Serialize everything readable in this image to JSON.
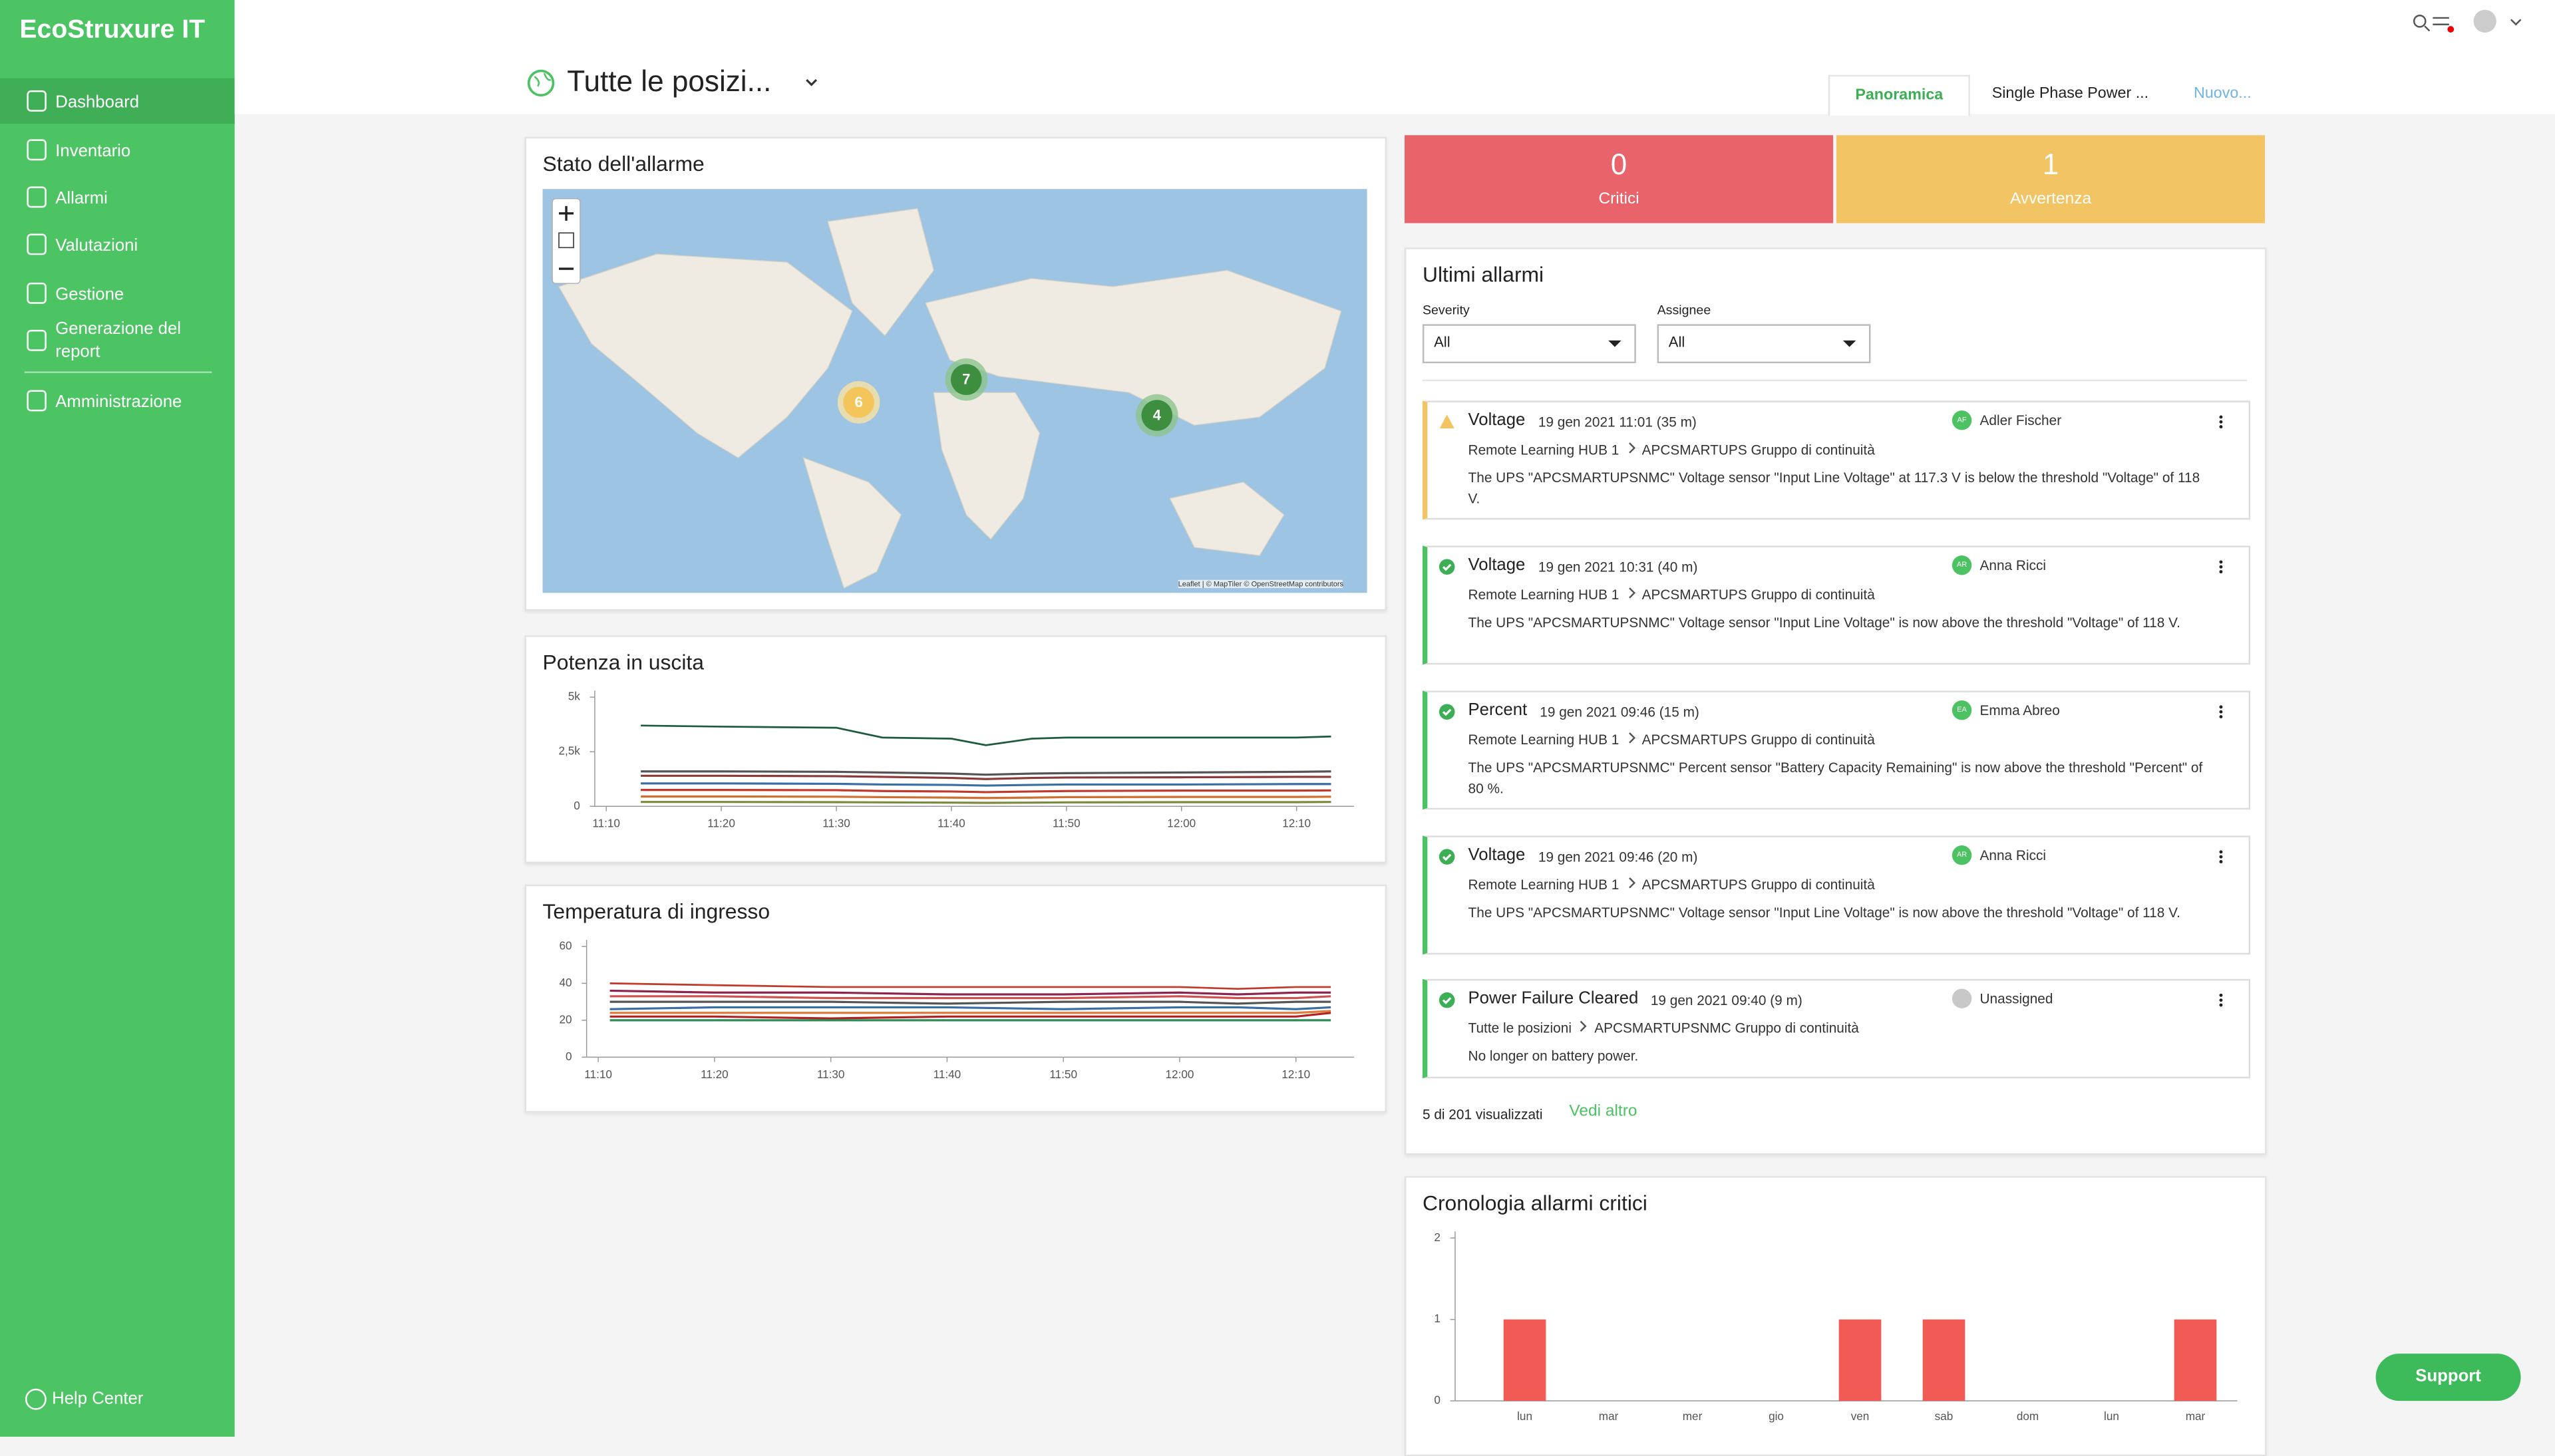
{
  "brand": "EcoStruxure IT",
  "nav": [
    "Dashboard",
    "Inventario",
    "Allarmi",
    "Valutazioni",
    "Gestione",
    "Generazione del report",
    "Amministrazione"
  ],
  "help": "Help Center",
  "location": "Tutte le posizi...",
  "tabs": [
    "Panoramica",
    "Single Phase Power ...",
    "Nuovo..."
  ],
  "map": {
    "title": "Stato dell'allarme",
    "clusters": [
      6,
      7,
      4
    ],
    "attribution": "Leaflet | © MapTiler © OpenStreetMap contributors"
  },
  "counters": [
    {
      "value": 0,
      "label": "Critici"
    },
    {
      "value": 1,
      "label": "Avvertenza"
    }
  ],
  "alarms": {
    "title": "Ultimi allarmi",
    "filters": [
      {
        "label": "Severity",
        "value": "All"
      },
      {
        "label": "Assignee",
        "value": "All"
      }
    ],
    "items": [
      {
        "severity": "warning",
        "name": "Voltage",
        "time": "19 gen 2021 11:01 (35 m)",
        "initials": "AF",
        "assignee": "Adler Fischer",
        "path": [
          "Remote Learning HUB 1",
          "APCSMARTUPS Gruppo di continuità"
        ],
        "message": "The UPS \"APCSMARTUPSNMC\" Voltage sensor \"Input Line Voltage\" at 117.3 V is below the threshold \"Voltage\" of 118 V."
      },
      {
        "severity": "ok",
        "name": "Voltage",
        "time": "19 gen 2021 10:31 (40 m)",
        "initials": "AR",
        "assignee": "Anna Ricci",
        "path": [
          "Remote Learning HUB 1",
          "APCSMARTUPS Gruppo di continuità"
        ],
        "message": "The UPS \"APCSMARTUPSNMC\" Voltage sensor \"Input Line Voltage\" is now above the threshold \"Voltage\" of 118 V."
      },
      {
        "severity": "ok",
        "name": "Percent",
        "time": "19 gen 2021 09:46 (15 m)",
        "initials": "EA",
        "assignee": "Emma Abreo",
        "path": [
          "Remote Learning HUB 1",
          "APCSMARTUPS Gruppo di continuità"
        ],
        "message": "The UPS \"APCSMARTUPSNMC\" Percent sensor \"Battery Capacity Remaining\" is now above the threshold \"Percent\" of 80 %."
      },
      {
        "severity": "ok",
        "name": "Voltage",
        "time": "19 gen 2021 09:46 (20 m)",
        "initials": "AR",
        "assignee": "Anna Ricci",
        "path": [
          "Remote Learning HUB 1",
          "APCSMARTUPS Gruppo di continuità"
        ],
        "message": "The UPS \"APCSMARTUPSNMC\" Voltage sensor \"Input Line Voltage\" is now above the threshold \"Voltage\" of 118 V."
      },
      {
        "severity": "ok",
        "name": "Power Failure Cleared",
        "time": "19 gen 2021 09:40 (9 m)",
        "assignee": "Unassigned",
        "path": [
          "Tutte le posizioni",
          "APCSMARTUPSNMC Gruppo di continuità"
        ],
        "message": "No longer on battery power."
      }
    ],
    "footer": "5 di 201 visualizzati",
    "more": "Vedi altro"
  },
  "support": "Support",
  "chart_data": [
    {
      "type": "line",
      "title": "Potenza in uscita",
      "x": [
        "11:13",
        "11:20",
        "11:30",
        "11:34",
        "11:40",
        "11:43",
        "11:47",
        "11:50",
        "12:00",
        "12:10",
        "12:13"
      ],
      "xlim": [
        "11:09",
        "12:15"
      ],
      "xticks": [
        "11:10",
        "11:20",
        "11:30",
        "11:40",
        "11:50",
        "12:00",
        "12:10"
      ],
      "ylim": [
        0,
        5000
      ],
      "yticks": [
        0,
        {
          "value": 2500,
          "label": "2,5k"
        },
        {
          "value": 5000,
          "label": "5k"
        }
      ],
      "series": [
        {
          "color": "#1d5a3c",
          "values": [
            3700,
            3650,
            3600,
            3150,
            3100,
            2800,
            3100,
            3150,
            3150,
            3150,
            3200
          ]
        },
        {
          "color": "#555555",
          "values": [
            1600,
            1600,
            1580,
            1550,
            1500,
            1450,
            1500,
            1520,
            1550,
            1580,
            1600
          ]
        },
        {
          "color": "#8b3a3a",
          "values": [
            1400,
            1400,
            1380,
            1350,
            1300,
            1250,
            1300,
            1320,
            1330,
            1350,
            1350
          ]
        },
        {
          "color": "#3a6ea5",
          "values": [
            1050,
            1050,
            1030,
            1000,
            980,
            950,
            980,
            1000,
            1000,
            1020,
            1020
          ]
        },
        {
          "color": "#c0392b",
          "values": [
            750,
            750,
            740,
            700,
            680,
            650,
            680,
            700,
            720,
            720,
            730
          ]
        },
        {
          "color": "#d07030",
          "values": [
            450,
            450,
            440,
            420,
            400,
            380,
            400,
            420,
            430,
            430,
            440
          ]
        },
        {
          "color": "#7a8b3b",
          "values": [
            200,
            200,
            190,
            180,
            170,
            160,
            170,
            180,
            190,
            190,
            200
          ]
        }
      ]
    },
    {
      "type": "line",
      "title": "Temperatura di ingresso",
      "x": [
        "11:11",
        "11:20",
        "11:30",
        "11:40",
        "11:50",
        "12:00",
        "12:05",
        "12:10",
        "12:13"
      ],
      "xlim": [
        "11:09",
        "12:15"
      ],
      "xticks": [
        "11:10",
        "11:20",
        "11:30",
        "11:40",
        "11:50",
        "12:00",
        "12:10"
      ],
      "ylim": [
        0,
        60
      ],
      "yticks": [
        0,
        20,
        40,
        60
      ],
      "series": [
        {
          "color": "#c0392b",
          "values": [
            40,
            39,
            38,
            38,
            38,
            38,
            37,
            38,
            38
          ]
        },
        {
          "color": "#8e2450",
          "values": [
            36,
            35,
            35,
            34,
            34,
            35,
            34,
            35,
            35
          ]
        },
        {
          "color": "#d05050",
          "values": [
            33,
            33,
            32,
            32,
            32,
            33,
            32,
            32,
            33
          ]
        },
        {
          "color": "#555555",
          "values": [
            30,
            30,
            30,
            29,
            30,
            30,
            29,
            30,
            30
          ]
        },
        {
          "color": "#3a6ea5",
          "values": [
            26,
            27,
            27,
            27,
            26,
            27,
            27,
            26,
            27
          ]
        },
        {
          "color": "#e07b39",
          "values": [
            24,
            24,
            24,
            24,
            24,
            24,
            24,
            24,
            25
          ]
        },
        {
          "color": "#b22222",
          "values": [
            22,
            22,
            21,
            22,
            22,
            22,
            22,
            22,
            24
          ]
        },
        {
          "color": "#2e8b57",
          "values": [
            20,
            20,
            20,
            20,
            20,
            20,
            20,
            20,
            20
          ]
        }
      ]
    },
    {
      "type": "bar",
      "title": "Cronologia allarmi critici",
      "categories": [
        "lun",
        "mar",
        "mer",
        "gio",
        "ven",
        "sab",
        "dom",
        "lun",
        "mar"
      ],
      "values": [
        1,
        0,
        0,
        0,
        1,
        1,
        0,
        0,
        1
      ],
      "color": "#f25a56",
      "ylim": [
        0,
        2
      ],
      "yticks": [
        0,
        1,
        2
      ]
    }
  ]
}
